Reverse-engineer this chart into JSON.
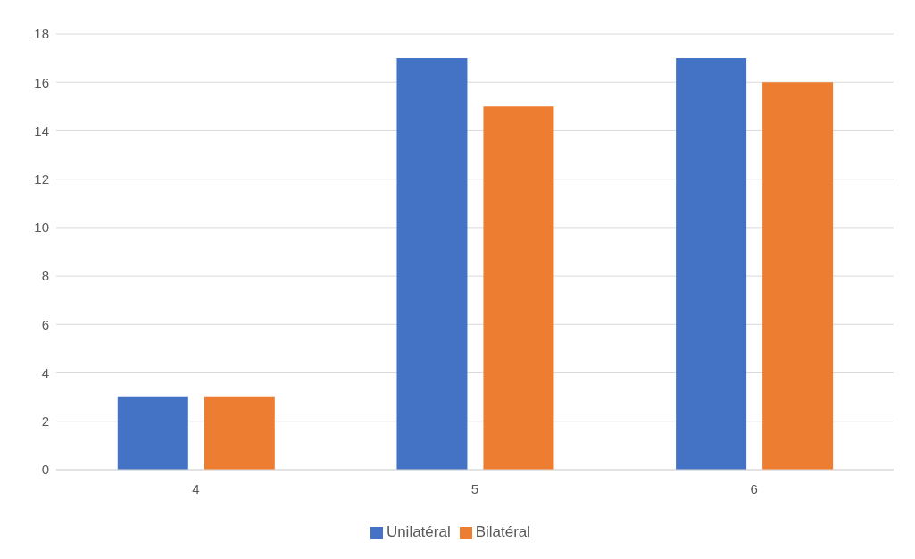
{
  "chart_data": {
    "type": "bar",
    "categories": [
      "4",
      "5",
      "6"
    ],
    "series": [
      {
        "name": "Unilatéral",
        "color": "#4472c4",
        "values": [
          3,
          17,
          17
        ]
      },
      {
        "name": "Bilatéral",
        "color": "#ed7d31",
        "values": [
          3,
          15,
          16
        ]
      }
    ],
    "ylim": [
      0,
      18
    ],
    "yticks": [
      0,
      2,
      4,
      6,
      8,
      10,
      12,
      14,
      16,
      18
    ],
    "grid": "y",
    "legend": "bottom"
  }
}
